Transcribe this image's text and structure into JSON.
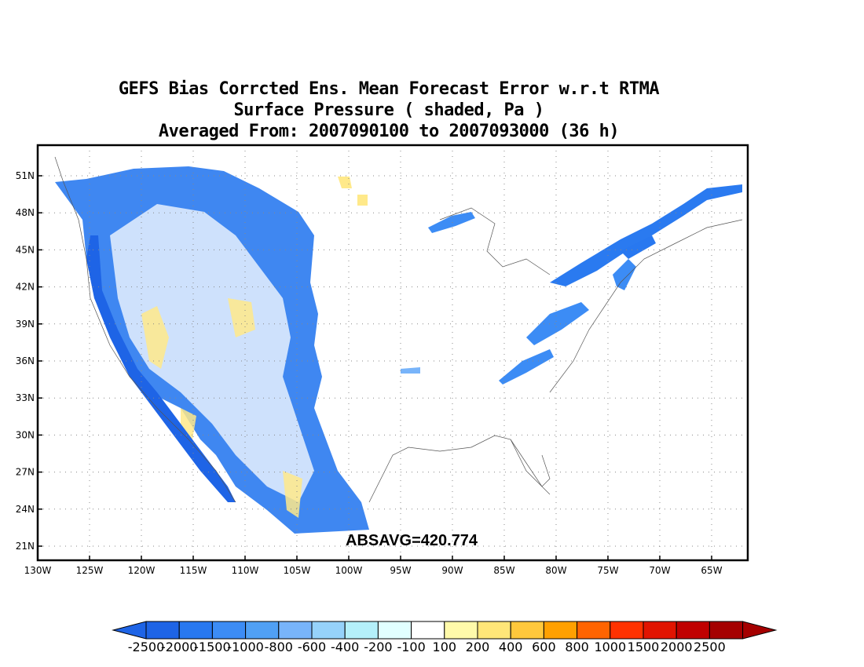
{
  "title": {
    "line1": "GEFS Bias Corrcted Ens. Mean Forecast Error w.r.t RTMA",
    "line2": "Surface Pressure ( shaded, Pa )",
    "line3": "Averaged From: 2007090100 to 2007093000 (36 h)"
  },
  "map": {
    "lon_ticks": [
      "130W",
      "125W",
      "120W",
      "115W",
      "110W",
      "105W",
      "100W",
      "95W",
      "90W",
      "85W",
      "80W",
      "75W",
      "70W",
      "65W"
    ],
    "lat_ticks": [
      "51N",
      "48N",
      "45N",
      "42N",
      "39N",
      "36N",
      "33N",
      "30N",
      "27N",
      "24N",
      "21N"
    ],
    "annotation": "ABSAVG=420.774",
    "grid": "dotted"
  },
  "colorbar": {
    "labels": [
      "-2500",
      "-2000",
      "-1500",
      "-1000",
      "-800",
      "-600",
      "-400",
      "-200",
      "-100",
      "100",
      "200",
      "400",
      "600",
      "800",
      "1000",
      "1500",
      "2000",
      "2500"
    ],
    "colors": [
      "#1e64e6",
      "#2878f0",
      "#3c8cf5",
      "#50a0f5",
      "#78b4fa",
      "#96d2fa",
      "#b4f0fa",
      "#e1ffff",
      "#ffffff",
      "#fffaaa",
      "#ffe678",
      "#ffc83c",
      "#ffa000",
      "#ff6400",
      "#ff3200",
      "#e11400",
      "#c00000",
      "#a50000"
    ]
  }
}
